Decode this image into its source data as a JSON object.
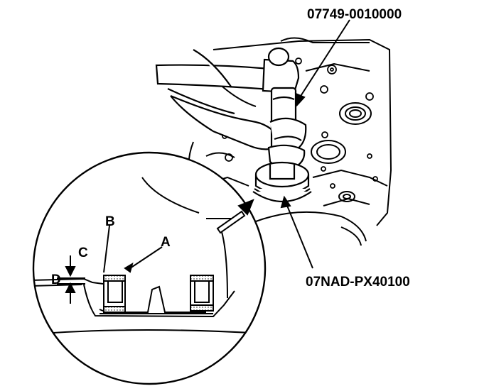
{
  "tools": {
    "driver_handle": "07749-0010000",
    "attachment": "07NAD-PX40100"
  },
  "detail_labels": {
    "a": "A",
    "b": "B",
    "c": "C",
    "d": "D"
  }
}
